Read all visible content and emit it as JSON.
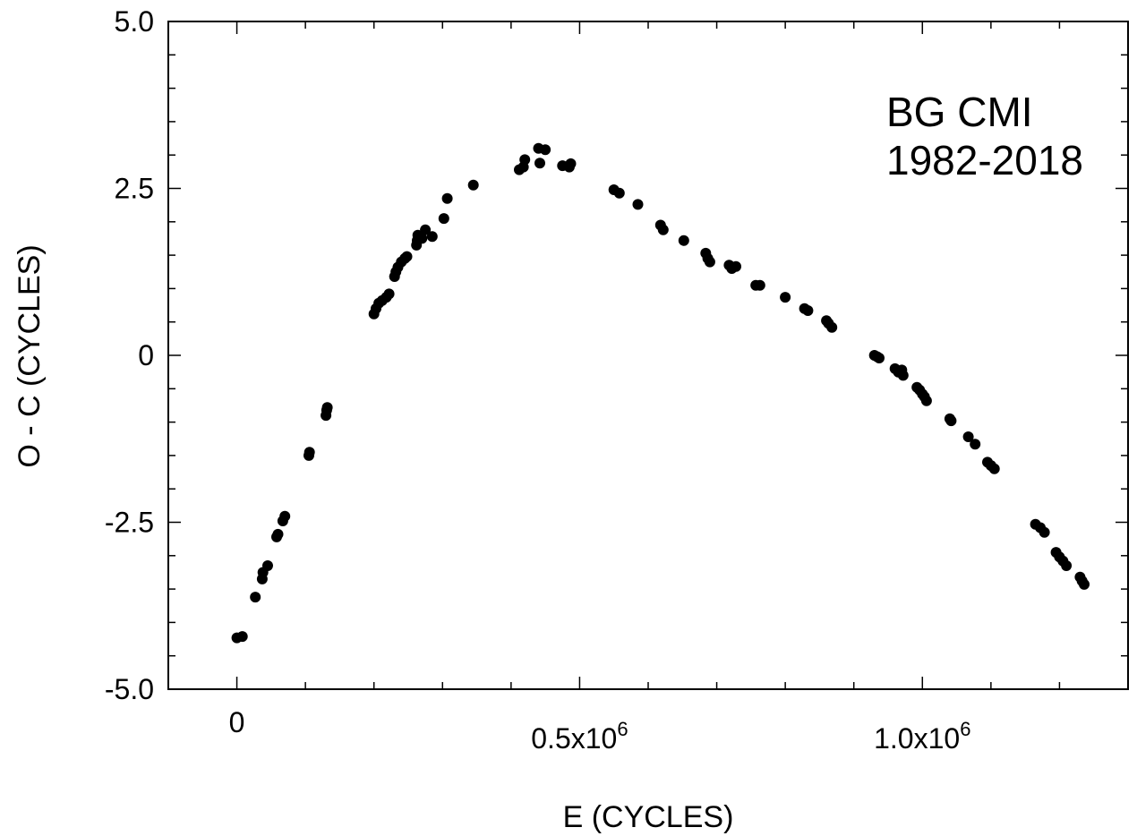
{
  "chart_data": {
    "type": "scatter",
    "title": "",
    "xlabel": "E (CYCLES)",
    "ylabel": "O - C (CYCLES)",
    "xlim": [
      -100000,
      1300000
    ],
    "ylim": [
      -5.0,
      5.0
    ],
    "grid": false,
    "x_ticks": [
      {
        "value": 0,
        "mantissa": "0",
        "exponent": ""
      },
      {
        "value": 500000,
        "mantissa": "0.5x10",
        "exponent": "6"
      },
      {
        "value": 1000000,
        "mantissa": "1.0x10",
        "exponent": "6"
      }
    ],
    "y_ticks": [
      {
        "value": 5.0,
        "label": "5.0"
      },
      {
        "value": 2.5,
        "label": "2.5"
      },
      {
        "value": 0,
        "label": "0"
      },
      {
        "value": -2.5,
        "label": "-2.5"
      },
      {
        "value": -5.0,
        "label": "-5.0"
      }
    ],
    "annotations": [
      "BG CMI",
      "1982-2018"
    ],
    "series": [
      {
        "points": [
          [
            0,
            -4.23
          ],
          [
            8000,
            -4.21
          ],
          [
            27000,
            -3.62
          ],
          [
            37000,
            -3.35
          ],
          [
            38000,
            -3.25
          ],
          [
            45000,
            -3.15
          ],
          [
            58000,
            -2.72
          ],
          [
            60000,
            -2.68
          ],
          [
            67000,
            -2.48
          ],
          [
            70000,
            -2.41
          ],
          [
            105000,
            -1.5
          ],
          [
            106000,
            -1.45
          ],
          [
            130000,
            -0.9
          ],
          [
            131000,
            -0.82
          ],
          [
            132000,
            -0.78
          ],
          [
            200000,
            0.62
          ],
          [
            203000,
            0.7
          ],
          [
            207000,
            0.78
          ],
          [
            212000,
            0.82
          ],
          [
            218000,
            0.87
          ],
          [
            222000,
            0.92
          ],
          [
            230000,
            1.18
          ],
          [
            232000,
            1.25
          ],
          [
            235000,
            1.32
          ],
          [
            240000,
            1.4
          ],
          [
            245000,
            1.45
          ],
          [
            248000,
            1.48
          ],
          [
            262000,
            1.65
          ],
          [
            263000,
            1.72
          ],
          [
            264000,
            1.8
          ],
          [
            270000,
            1.75
          ],
          [
            275000,
            1.88
          ],
          [
            285000,
            1.78
          ],
          [
            302000,
            2.05
          ],
          [
            307000,
            2.35
          ],
          [
            345000,
            2.55
          ],
          [
            412000,
            2.78
          ],
          [
            418000,
            2.82
          ],
          [
            420000,
            2.93
          ],
          [
            440000,
            3.1
          ],
          [
            442000,
            2.88
          ],
          [
            450000,
            3.08
          ],
          [
            475000,
            2.84
          ],
          [
            485000,
            2.82
          ],
          [
            487000,
            2.87
          ],
          [
            550000,
            2.48
          ],
          [
            558000,
            2.43
          ],
          [
            585000,
            2.26
          ],
          [
            618000,
            1.95
          ],
          [
            622000,
            1.88
          ],
          [
            652000,
            1.72
          ],
          [
            684000,
            1.53
          ],
          [
            687000,
            1.45
          ],
          [
            690000,
            1.4
          ],
          [
            718000,
            1.35
          ],
          [
            722000,
            1.3
          ],
          [
            728000,
            1.33
          ],
          [
            757000,
            1.05
          ],
          [
            763000,
            1.05
          ],
          [
            800000,
            0.87
          ],
          [
            828000,
            0.7
          ],
          [
            833000,
            0.67
          ],
          [
            860000,
            0.52
          ],
          [
            863000,
            0.48
          ],
          [
            868000,
            0.42
          ],
          [
            930000,
            0.0
          ],
          [
            934000,
            -0.02
          ],
          [
            937000,
            -0.04
          ],
          [
            960000,
            -0.2
          ],
          [
            965000,
            -0.25
          ],
          [
            970000,
            -0.22
          ],
          [
            972000,
            -0.3
          ],
          [
            992000,
            -0.48
          ],
          [
            996000,
            -0.52
          ],
          [
            1000000,
            -0.58
          ],
          [
            1003000,
            -0.62
          ],
          [
            1006000,
            -0.68
          ],
          [
            1040000,
            -0.95
          ],
          [
            1042000,
            -0.98
          ],
          [
            1067000,
            -1.22
          ],
          [
            1077000,
            -1.33
          ],
          [
            1095000,
            -1.6
          ],
          [
            1100000,
            -1.65
          ],
          [
            1105000,
            -1.7
          ],
          [
            1165000,
            -2.53
          ],
          [
            1172000,
            -2.58
          ],
          [
            1178000,
            -2.65
          ],
          [
            1195000,
            -2.95
          ],
          [
            1200000,
            -3.02
          ],
          [
            1205000,
            -3.08
          ],
          [
            1210000,
            -3.15
          ],
          [
            1230000,
            -3.32
          ],
          [
            1233000,
            -3.38
          ],
          [
            1236000,
            -3.43
          ]
        ]
      }
    ]
  },
  "colors": {
    "marker": "#000000",
    "axes": "#000000",
    "background": "#ffffff"
  }
}
